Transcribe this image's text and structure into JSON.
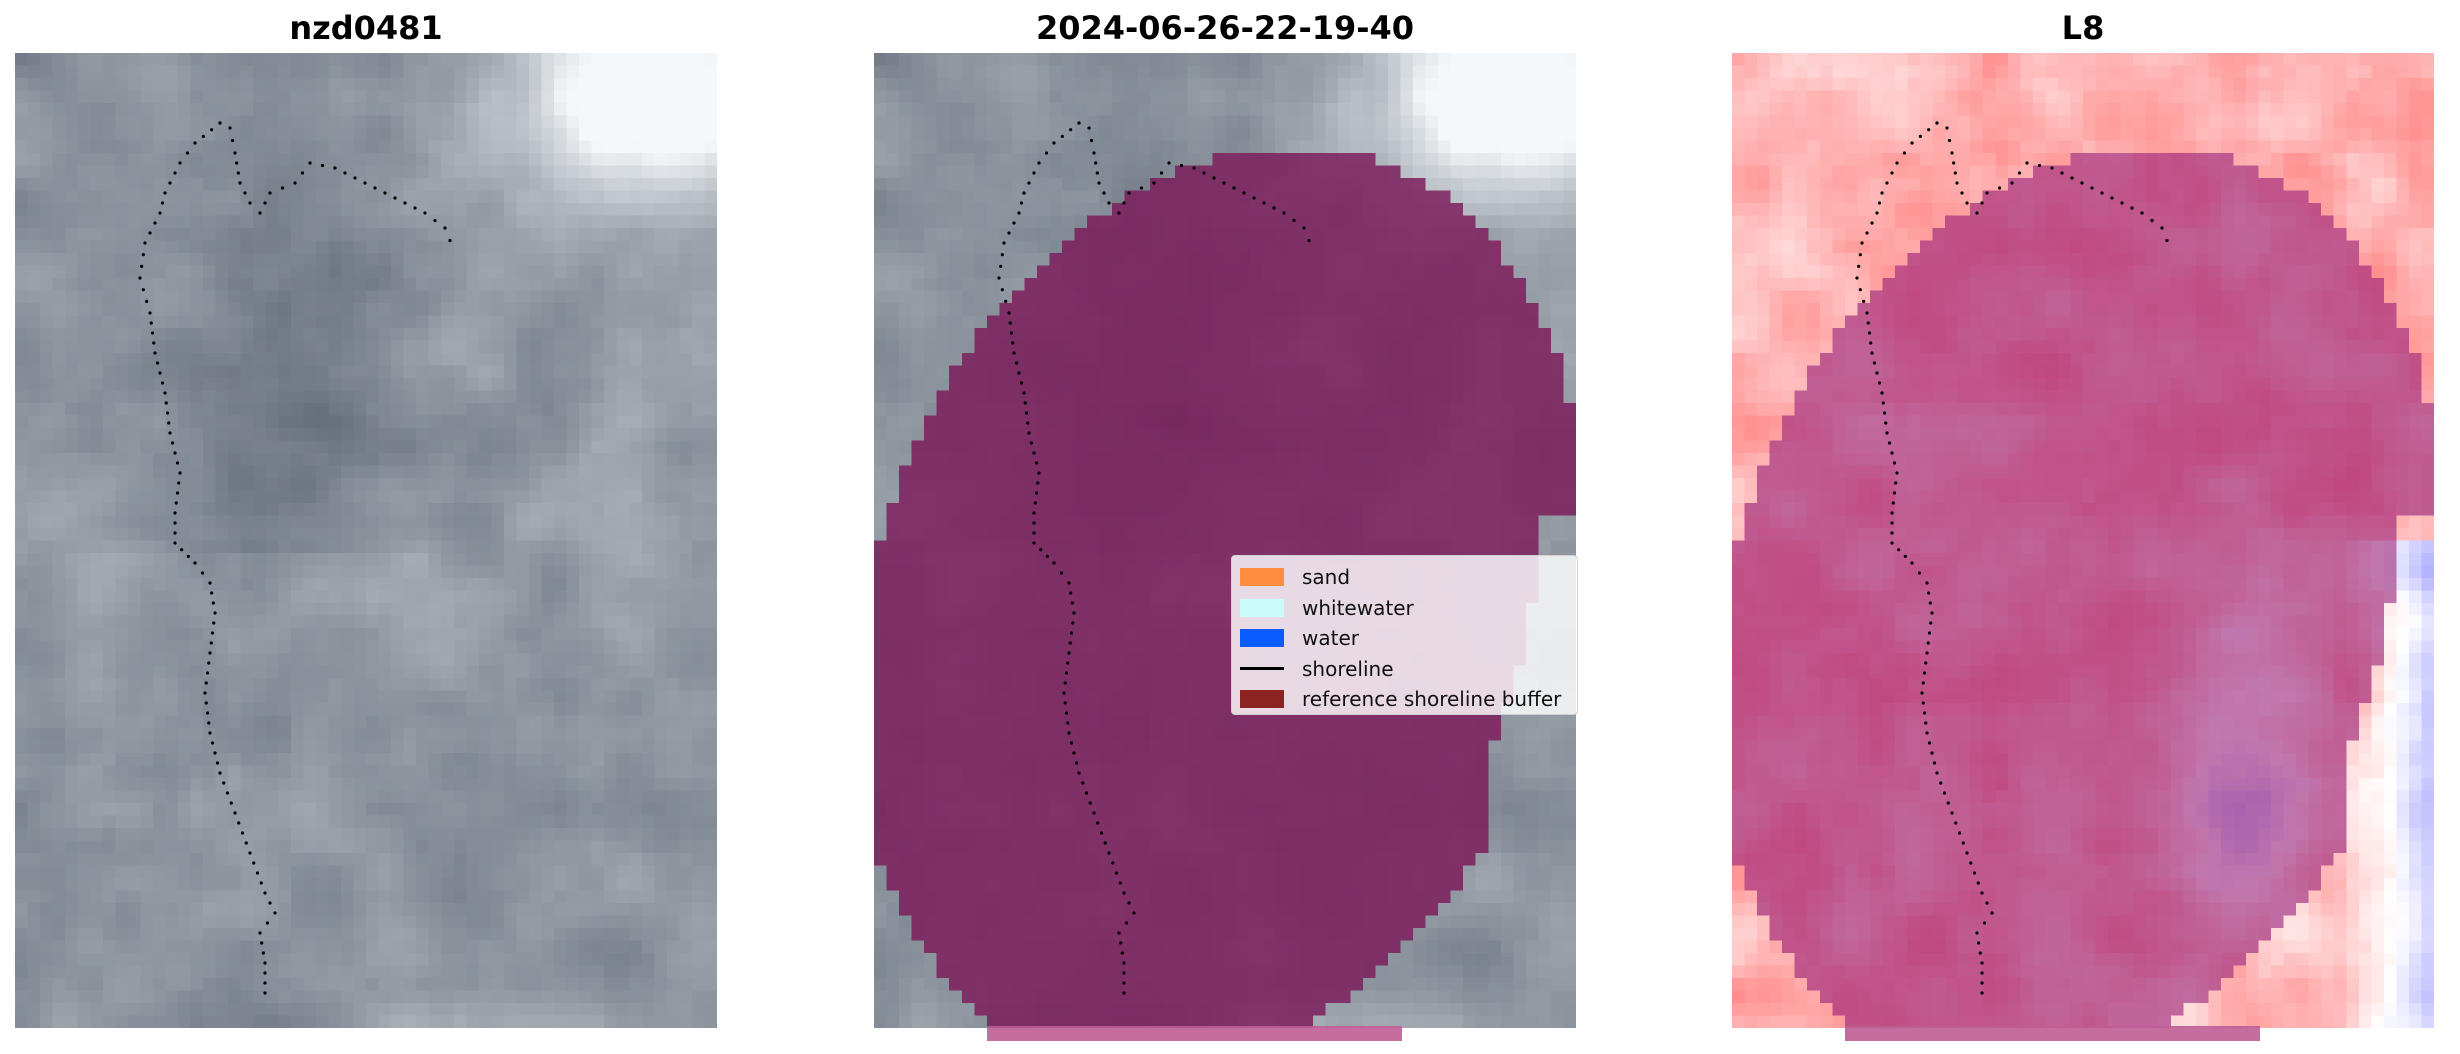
{
  "panels": [
    {
      "id": "rgb",
      "title": "nzd0481"
    },
    {
      "id": "classified",
      "title": "2024-06-26-22-19-40"
    },
    {
      "id": "index",
      "title": "L8"
    }
  ],
  "legend": {
    "items": [
      {
        "label": "sand",
        "color": "#ff8c3f",
        "kind": "patch"
      },
      {
        "label": "whitewater",
        "color": "#ccfcf9",
        "kind": "patch"
      },
      {
        "label": "water",
        "color": "#0b5cff",
        "kind": "patch"
      },
      {
        "label": "shoreline",
        "color": "#000000",
        "kind": "line"
      },
      {
        "label": "reference shoreline buffer",
        "color": "#8b2323",
        "kind": "patch"
      }
    ]
  },
  "colors": {
    "buffer_overlay": "#7b1a5a",
    "buffer_strip": "#bf5d93",
    "shoreline_dots": "#000000",
    "index_positive": "#ff1a1a",
    "index_negative": "#1a1aff"
  }
}
